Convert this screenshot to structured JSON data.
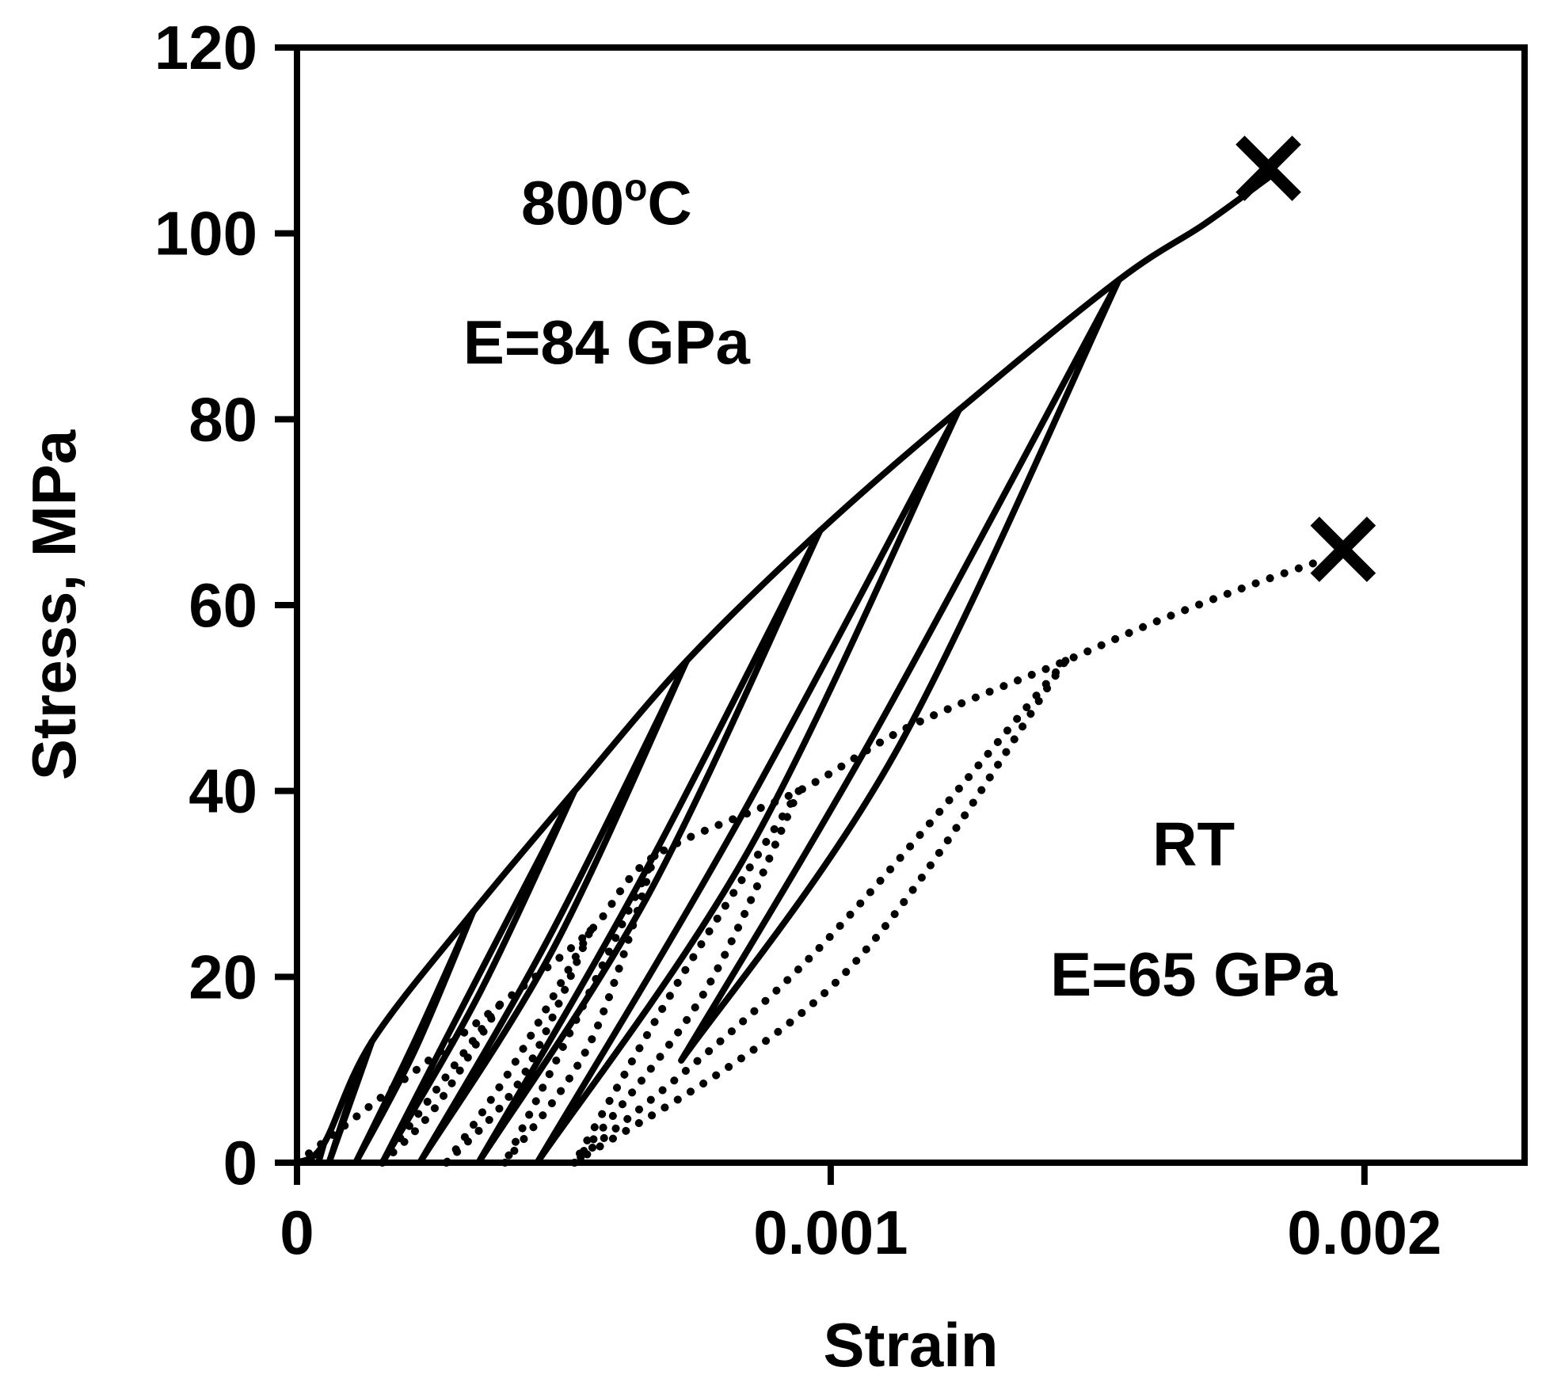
{
  "chart_data": {
    "type": "line",
    "title": "",
    "xlabel": "Strain",
    "ylabel": "Stress, MPa",
    "xlim": [
      0,
      0.0023
    ],
    "ylim": [
      0,
      120
    ],
    "x_ticks": [
      {
        "value": 0,
        "label": "0"
      },
      {
        "value": 0.001,
        "label": "0.001"
      },
      {
        "value": 0.002,
        "label": "0.002"
      }
    ],
    "y_ticks": [
      {
        "value": 0,
        "label": "0"
      },
      {
        "value": 20,
        "label": "20"
      },
      {
        "value": 40,
        "label": "40"
      },
      {
        "value": 60,
        "label": "60"
      },
      {
        "value": 80,
        "label": "80"
      },
      {
        "value": 100,
        "label": "100"
      },
      {
        "value": 120,
        "label": "120"
      }
    ],
    "grid": false,
    "legend": "none",
    "annotations": [
      {
        "text_main": "800",
        "text_sup": "o",
        "text_tail": "C",
        "x": 0.00058,
        "y": 101
      },
      {
        "text_main": "E=84 GPa",
        "x": 0.00058,
        "y": 86
      },
      {
        "text_main": "RT",
        "x": 0.00168,
        "y": 32
      },
      {
        "text_main": "E=65 GPa",
        "x": 0.00168,
        "y": 18
      }
    ],
    "series": [
      {
        "condition": "800C",
        "style": "solid",
        "cycles": [
          {
            "peak": [
              5e-05,
              2
            ],
            "unload": [
              [
                5e-05,
                2
              ],
              [
                4e-05,
                0
              ]
            ],
            "reload": [
              [
                4e-05,
                0
              ],
              [
                5e-05,
                2
              ]
            ]
          },
          {
            "peak": [
              0.00014,
              13
            ],
            "unload": [
              [
                0.00014,
                13
              ],
              [
                0.0001,
                7
              ],
              [
                6e-05,
                0
              ]
            ],
            "reload": [
              [
                6e-05,
                0
              ],
              [
                0.0001,
                6.5
              ],
              [
                0.00014,
                13
              ]
            ]
          },
          {
            "peak": [
              0.00033,
              27
            ],
            "unload": [
              [
                0.00033,
                27
              ],
              [
                0.00022,
                12
              ],
              [
                0.00011,
                0
              ]
            ],
            "reload": [
              [
                0.00011,
                0
              ],
              [
                0.00022,
                13
              ],
              [
                0.00033,
                27
              ]
            ]
          },
          {
            "peak": [
              0.00052,
              40
            ],
            "unload": [
              [
                0.00052,
                40
              ],
              [
                0.00033,
                19
              ],
              [
                0.00016,
                0
              ]
            ],
            "reload": [
              [
                0.00016,
                0
              ],
              [
                0.00034,
                18
              ],
              [
                0.00052,
                40
              ]
            ]
          },
          {
            "peak": [
              0.00073,
              54
            ],
            "unload": [
              [
                0.00073,
                54
              ],
              [
                0.00047,
                24
              ],
              [
                0.00023,
                0
              ]
            ],
            "reload": [
              [
                0.00023,
                0
              ],
              [
                0.00048,
                23
              ],
              [
                0.00073,
                54
              ]
            ]
          },
          {
            "peak": [
              0.00098,
              68
            ],
            "unload": [
              [
                0.00098,
                68
              ],
              [
                0.00064,
                30
              ],
              [
                0.00034,
                0
              ]
            ],
            "reload": [
              [
                0.00034,
                0
              ],
              [
                0.00066,
                29
              ],
              [
                0.00098,
                68
              ]
            ]
          },
          {
            "peak": [
              0.00124,
              81
            ],
            "unload": [
              [
                0.00124,
                81
              ],
              [
                0.00082,
                36
              ],
              [
                0.00045,
                0
              ]
            ],
            "reload": [
              [
                0.00045,
                0
              ],
              [
                0.00085,
                34
              ],
              [
                0.00124,
                81
              ]
            ]
          },
          {
            "peak": [
              0.00154,
              95
            ],
            "unload": [
              [
                0.00154,
                95
              ],
              [
                0.00108,
                46
              ],
              [
                0.00072,
                11
              ]
            ],
            "reload": [
              [
                0.00072,
                11
              ],
              [
                0.00112,
                44
              ],
              [
                0.00154,
                95
              ]
            ]
          }
        ],
        "envelope": [
          [
            0,
            0
          ],
          [
            5e-05,
            2
          ],
          [
            0.00014,
            13
          ],
          [
            0.00033,
            27
          ],
          [
            0.00052,
            40
          ],
          [
            0.00073,
            54
          ],
          [
            0.00098,
            68
          ],
          [
            0.00124,
            81
          ],
          [
            0.00154,
            95
          ],
          [
            0.0017,
            101
          ],
          [
            0.00182,
            106
          ]
        ],
        "failure": {
          "x": 0.00182,
          "y": 107
        }
      },
      {
        "condition": "RT",
        "style": "dotted",
        "cycles": [
          {
            "peak": [
              0.00038,
              17
            ],
            "unload": [
              [
                0.00038,
                17
              ],
              [
                0.00025,
                7
              ],
              [
                0.00016,
                0
              ]
            ],
            "reload": [
              [
                0.00016,
                0
              ],
              [
                0.00026,
                6
              ],
              [
                0.00038,
                17
              ]
            ]
          },
          {
            "peak": [
              0.00055,
              25
            ],
            "unload": [
              [
                0.00055,
                25
              ],
              [
                0.0004,
                10
              ],
              [
                0.00028,
                0
              ]
            ],
            "reload": [
              [
                0.00028,
                0
              ],
              [
                0.00042,
                9
              ],
              [
                0.00055,
                25
              ]
            ]
          },
          {
            "peak": [
              0.00067,
              33
            ],
            "unload": [
              [
                0.00067,
                33
              ],
              [
                0.00052,
                15
              ],
              [
                0.00039,
                0
              ]
            ],
            "reload": [
              [
                0.00039,
                0
              ],
              [
                0.00055,
                13
              ],
              [
                0.00067,
                33
              ]
            ]
          },
          {
            "peak": [
              0.00094,
              40
            ],
            "unload": [
              [
                0.00094,
                40
              ],
              [
                0.00072,
                20
              ],
              [
                0.00052,
                0
              ]
            ],
            "reload": [
              [
                0.00052,
                0
              ],
              [
                0.00076,
                18
              ],
              [
                0.00094,
                40
              ]
            ]
          },
          {
            "peak": [
              0.00144,
              54
            ],
            "unload": [
              [
                0.00144,
                54
              ],
              [
                0.00096,
                22
              ],
              [
                0.00052,
                0
              ]
            ],
            "reload": [
              [
                0.00052,
                0
              ],
              [
                0.00102,
                20
              ],
              [
                0.00144,
                54
              ]
            ]
          }
        ],
        "envelope": [
          [
            0,
            0
          ],
          [
            0.00038,
            17
          ],
          [
            0.00055,
            25
          ],
          [
            0.00067,
            33
          ],
          [
            0.00094,
            40
          ],
          [
            0.00115,
            47
          ],
          [
            0.00144,
            54
          ],
          [
            0.0016,
            58
          ],
          [
            0.00178,
            62
          ],
          [
            0.00193,
            65
          ]
        ],
        "failure": {
          "x": 0.00196,
          "y": 66
        }
      }
    ]
  }
}
